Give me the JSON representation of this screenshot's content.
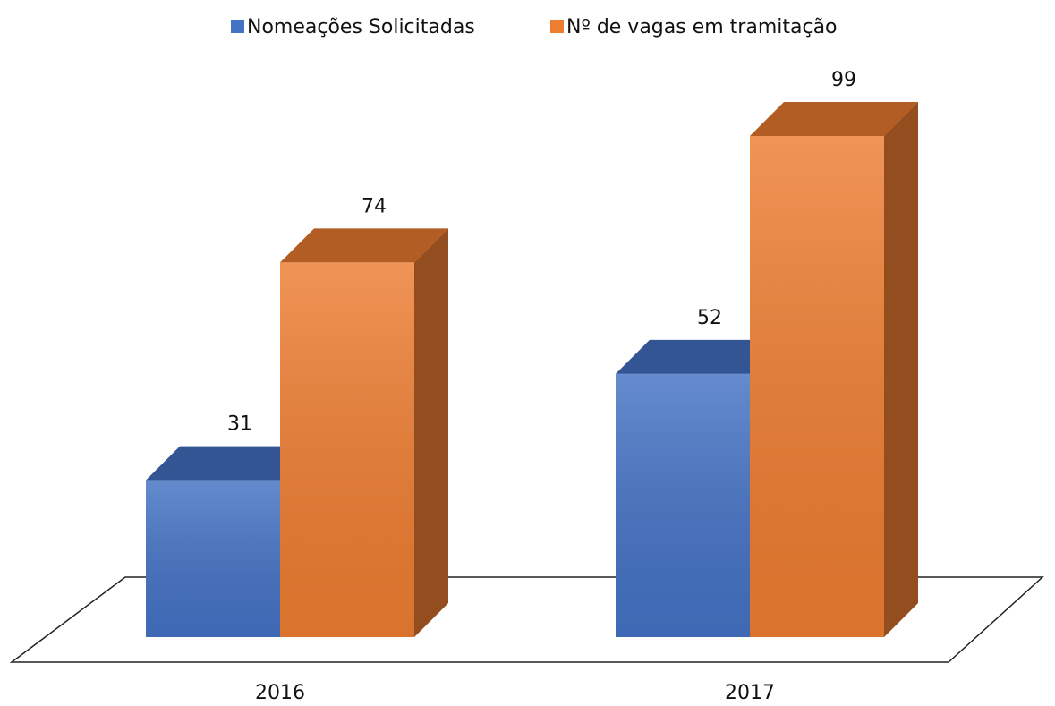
{
  "chart_data": {
    "type": "bar3d",
    "categories": [
      "2016",
      "2017"
    ],
    "series": [
      {
        "name": "Nomeações Solicitadas",
        "color": "#4472c4",
        "values": [
          31,
          52
        ]
      },
      {
        "name": "Nº de vagas em tramitação",
        "color": "#ed7d31",
        "values": [
          74,
          99
        ]
      }
    ],
    "legend": "top"
  }
}
